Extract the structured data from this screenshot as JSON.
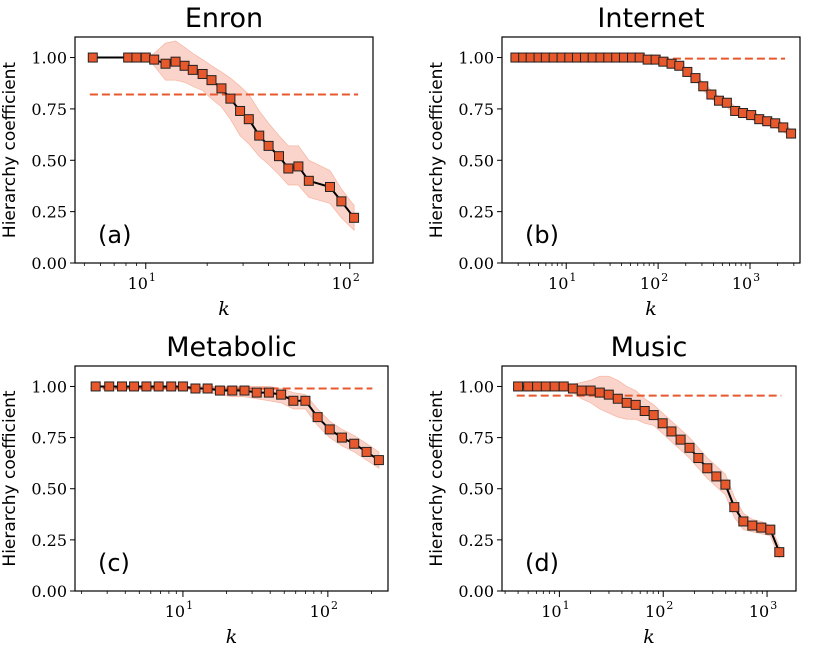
{
  "colors": {
    "marker": "#e8582d",
    "band": "#f7b8a6",
    "reference": "#e8582d",
    "line": "#000000"
  },
  "chart_data": [
    {
      "type": "line",
      "title": "Enron",
      "panel_label": "(a)",
      "xlabel": "k",
      "ylabel": "Hierarchy coefficient",
      "xscale": "log",
      "xlim": [
        4.5,
        130
      ],
      "ylim": [
        0,
        1.1
      ],
      "yticks": [
        "0.00",
        "0.25",
        "0.50",
        "0.75",
        "1.00"
      ],
      "xticks": [
        {
          "base": "10",
          "exp": "1"
        },
        {
          "base": "10",
          "exp": "2"
        }
      ],
      "reference_line": 0.82,
      "series": {
        "x": [
          5.5,
          8.2,
          9.0,
          10.0,
          11.0,
          12.5,
          14.0,
          15.5,
          17.0,
          19.0,
          21.0,
          23.5,
          26.0,
          29.0,
          32.0,
          36.0,
          40.0,
          45.0,
          50.0,
          56.0,
          63.0,
          80.0,
          91.0,
          105.0
        ],
        "y": [
          1.0,
          1.0,
          1.0,
          1.0,
          0.99,
          0.97,
          0.98,
          0.96,
          0.94,
          0.92,
          0.89,
          0.85,
          0.8,
          0.74,
          0.7,
          0.62,
          0.57,
          0.52,
          0.46,
          0.47,
          0.4,
          0.37,
          0.3,
          0.22
        ],
        "band_upper": [
          1.0,
          1.0,
          1.0,
          1.0,
          1.02,
          1.07,
          1.08,
          1.05,
          1.02,
          0.99,
          0.96,
          0.93,
          0.9,
          0.86,
          0.82,
          0.74,
          0.68,
          0.62,
          0.57,
          0.57,
          0.5,
          0.45,
          0.36,
          0.28
        ],
        "band_lower": [
          1.0,
          1.0,
          1.0,
          1.0,
          0.96,
          0.89,
          0.89,
          0.88,
          0.86,
          0.84,
          0.8,
          0.76,
          0.7,
          0.62,
          0.58,
          0.52,
          0.48,
          0.43,
          0.38,
          0.38,
          0.32,
          0.29,
          0.22,
          0.16
        ]
      }
    },
    {
      "type": "line",
      "title": "Internet",
      "panel_label": "(b)",
      "xlabel": "k",
      "ylabel": "Hierarchy coefficient",
      "xscale": "log",
      "xlim": [
        2.0,
        3500
      ],
      "ylim": [
        0,
        1.1
      ],
      "yticks": [
        "0.00",
        "0.25",
        "0.50",
        "0.75",
        "1.00"
      ],
      "xticks": [
        {
          "base": "10",
          "exp": "1"
        },
        {
          "base": "10",
          "exp": "2"
        },
        {
          "base": "10",
          "exp": "3"
        }
      ],
      "reference_line": 0.995,
      "series": {
        "x": [
          2.8,
          3.4,
          4.1,
          5.0,
          6.0,
          7.3,
          8.9,
          10.8,
          13.1,
          16.0,
          19.4,
          23.6,
          28.7,
          35.0,
          42.5,
          52.0,
          63.0,
          77.0,
          94.0,
          114.0,
          140.0,
          170.0,
          208.0,
          255.0,
          310.0,
          380.0,
          460.0,
          560.0,
          690.0,
          840.0,
          1030.0,
          1260.0,
          1540.0,
          1880.0,
          2300.0,
          2800.0
        ],
        "y": [
          1.0,
          1.0,
          1.0,
          1.0,
          1.0,
          1.0,
          1.0,
          1.0,
          1.0,
          1.0,
          1.0,
          1.0,
          1.0,
          1.0,
          1.0,
          1.0,
          1.0,
          0.99,
          0.99,
          0.98,
          0.97,
          0.96,
          0.93,
          0.9,
          0.86,
          0.82,
          0.79,
          0.78,
          0.74,
          0.73,
          0.72,
          0.7,
          0.69,
          0.68,
          0.66,
          0.63
        ],
        "band_upper": [
          1.0,
          1.0,
          1.0,
          1.0,
          1.0,
          1.0,
          1.0,
          1.0,
          1.0,
          1.0,
          1.0,
          1.0,
          1.0,
          1.0,
          1.0,
          1.0,
          1.0,
          1.0,
          1.0,
          0.99,
          0.98,
          0.97,
          0.94,
          0.91,
          0.88,
          0.84,
          0.81,
          0.8,
          0.76,
          0.75,
          0.74,
          0.72,
          0.71,
          0.7,
          0.68,
          0.65
        ],
        "band_lower": [
          1.0,
          1.0,
          1.0,
          1.0,
          1.0,
          1.0,
          1.0,
          1.0,
          1.0,
          1.0,
          1.0,
          1.0,
          1.0,
          1.0,
          1.0,
          1.0,
          1.0,
          0.98,
          0.98,
          0.97,
          0.96,
          0.95,
          0.92,
          0.89,
          0.84,
          0.8,
          0.77,
          0.76,
          0.72,
          0.71,
          0.7,
          0.68,
          0.67,
          0.66,
          0.64,
          0.61
        ]
      }
    },
    {
      "type": "line",
      "title": "Metabolic",
      "panel_label": "(c)",
      "xlabel": "k",
      "ylabel": "Hierarchy coefficient",
      "xscale": "log",
      "xlim": [
        1.8,
        260
      ],
      "ylim": [
        0,
        1.1
      ],
      "yticks": [
        "0.00",
        "0.25",
        "0.50",
        "0.75",
        "1.00"
      ],
      "xticks": [
        {
          "base": "10",
          "exp": "1"
        },
        {
          "base": "10",
          "exp": "2"
        }
      ],
      "reference_line": 0.99,
      "series": {
        "x": [
          2.5,
          3.1,
          3.8,
          4.6,
          5.6,
          6.8,
          8.3,
          10.0,
          12.2,
          14.8,
          18.0,
          21.9,
          26.6,
          32.3,
          39.2,
          47.6,
          57.8,
          70.0,
          85.0,
          103.0,
          125.0,
          152.0,
          185.0,
          225.0
        ],
        "y": [
          1.0,
          1.0,
          1.0,
          1.0,
          1.0,
          1.0,
          1.0,
          1.0,
          0.99,
          0.99,
          0.98,
          0.98,
          0.98,
          0.97,
          0.97,
          0.96,
          0.93,
          0.93,
          0.85,
          0.79,
          0.75,
          0.72,
          0.68,
          0.64
        ],
        "band_upper": [
          1.0,
          1.0,
          1.0,
          1.0,
          1.0,
          1.0,
          1.0,
          1.0,
          1.0,
          1.0,
          1.0,
          1.0,
          1.0,
          1.0,
          1.0,
          0.99,
          0.97,
          0.96,
          0.89,
          0.83,
          0.79,
          0.76,
          0.72,
          0.68
        ],
        "band_lower": [
          1.0,
          1.0,
          1.0,
          1.0,
          1.0,
          1.0,
          1.0,
          1.0,
          0.98,
          0.97,
          0.96,
          0.95,
          0.95,
          0.94,
          0.93,
          0.92,
          0.89,
          0.89,
          0.81,
          0.75,
          0.71,
          0.68,
          0.64,
          0.6
        ]
      }
    },
    {
      "type": "line",
      "title": "Music",
      "panel_label": "(d)",
      "xlabel": "k",
      "ylabel": "Hierarchy coefficient",
      "xscale": "log",
      "xlim": [
        2.8,
        1900
      ],
      "ylim": [
        0,
        1.1
      ],
      "yticks": [
        "0.00",
        "0.25",
        "0.50",
        "0.75",
        "1.00"
      ],
      "xticks": [
        {
          "base": "10",
          "exp": "1"
        },
        {
          "base": "10",
          "exp": "2"
        },
        {
          "base": "10",
          "exp": "3"
        }
      ],
      "reference_line": 0.955,
      "series": {
        "x": [
          4.0,
          5.0,
          6.1,
          7.4,
          9.0,
          11.0,
          13.5,
          16.4,
          20.0,
          24.5,
          29.9,
          36.5,
          44.5,
          54.3,
          66.3,
          80.9,
          98.7,
          120.0,
          147.0,
          179.0,
          218.0,
          266.0,
          325.0,
          397.0,
          484.0,
          591.0,
          721.0,
          880.0,
          1075.0,
          1312.0
        ],
        "y": [
          1.0,
          1.0,
          1.0,
          1.0,
          1.0,
          1.0,
          0.99,
          0.98,
          0.98,
          0.97,
          0.96,
          0.94,
          0.92,
          0.91,
          0.88,
          0.86,
          0.82,
          0.78,
          0.74,
          0.7,
          0.65,
          0.6,
          0.56,
          0.52,
          0.41,
          0.34,
          0.32,
          0.31,
          0.3,
          0.19
        ],
        "band_upper": [
          1.0,
          1.0,
          1.0,
          1.0,
          1.0,
          1.0,
          1.01,
          1.02,
          1.03,
          1.05,
          1.05,
          1.03,
          1.0,
          0.98,
          0.94,
          0.91,
          0.87,
          0.83,
          0.79,
          0.75,
          0.7,
          0.65,
          0.61,
          0.57,
          0.46,
          0.38,
          0.35,
          0.34,
          0.32,
          0.22
        ],
        "band_lower": [
          1.0,
          1.0,
          1.0,
          1.0,
          1.0,
          1.0,
          0.97,
          0.94,
          0.92,
          0.89,
          0.87,
          0.85,
          0.84,
          0.84,
          0.82,
          0.81,
          0.77,
          0.73,
          0.69,
          0.65,
          0.6,
          0.55,
          0.51,
          0.47,
          0.36,
          0.3,
          0.29,
          0.28,
          0.27,
          0.16
        ]
      }
    }
  ]
}
